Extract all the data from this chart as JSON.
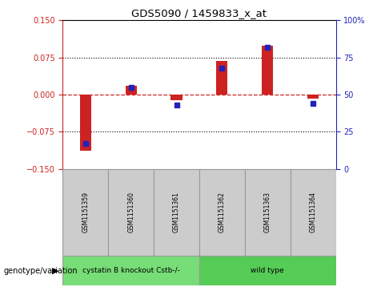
{
  "title": "GDS5090 / 1459833_x_at",
  "samples": [
    "GSM1151359",
    "GSM1151360",
    "GSM1151361",
    "GSM1151362",
    "GSM1151363",
    "GSM1151364"
  ],
  "red_values": [
    -0.113,
    0.018,
    -0.012,
    0.068,
    0.098,
    -0.008
  ],
  "blue_values_pct": [
    17,
    55,
    43,
    68,
    82,
    44
  ],
  "groups": [
    {
      "label": "cystatin B knockout Cstb-/-",
      "samples": [
        0,
        1,
        2
      ],
      "color": "#77DD77"
    },
    {
      "label": "wild type",
      "samples": [
        3,
        4,
        5
      ],
      "color": "#55CC55"
    }
  ],
  "ylim_left": [
    -0.15,
    0.15
  ],
  "ylim_right": [
    0,
    100
  ],
  "yticks_left": [
    -0.15,
    -0.075,
    0,
    0.075,
    0.15
  ],
  "yticks_right": [
    0,
    25,
    50,
    75,
    100
  ],
  "dotted_lines": [
    -0.075,
    0.075
  ],
  "red_color": "#CC2222",
  "blue_color": "#2222BB",
  "bg_color": "#FFFFFF",
  "group_label": "genotype/variation"
}
